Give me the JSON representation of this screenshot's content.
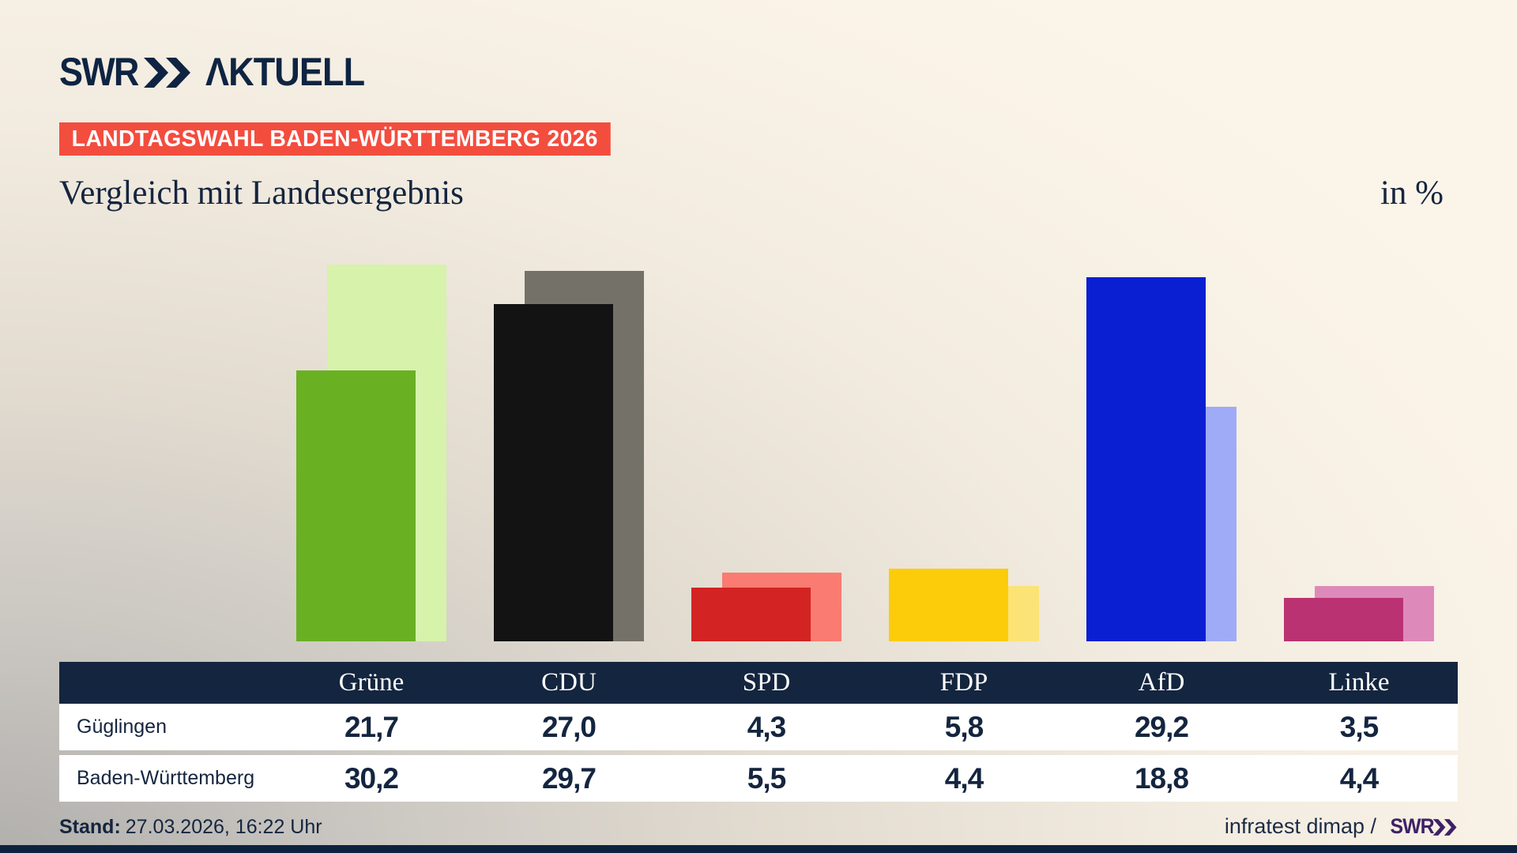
{
  "brand": {
    "swr": "SWR",
    "aktuell": "ΛKTUELL"
  },
  "badge": {
    "text": "LANDTAGSWAHL BADEN-WÜRTTEMBERG 2026",
    "bg": "#f34d3e",
    "fg": "#ffffff"
  },
  "title": "Vergleich mit Landesergebnis",
  "unit": "in %",
  "chart_data": {
    "type": "bar",
    "title": "Vergleich mit Landesergebnis",
    "unit": "in %",
    "categories": [
      "Grüne",
      "CDU",
      "SPD",
      "FDP",
      "AfD",
      "Linke"
    ],
    "series": [
      {
        "name": "Güglingen",
        "role": "foreground",
        "values": [
          21.7,
          27.0,
          4.3,
          5.8,
          29.2,
          3.5
        ],
        "colors": [
          "#6ab023",
          "#131313",
          "#d32322",
          "#fccc0a",
          "#0a1fd2",
          "#bb3272"
        ]
      },
      {
        "name": "Baden-Württemberg",
        "role": "background",
        "values": [
          30.2,
          29.7,
          5.5,
          4.4,
          18.8,
          4.4
        ],
        "colors": [
          "#d6f2ab",
          "#747169",
          "#f97b71",
          "#fbe375",
          "#9fabf7",
          "#dd8abb"
        ]
      }
    ],
    "ylim": [
      0,
      32.4
    ],
    "grid": false,
    "legend_position": "table-below"
  },
  "table": {
    "header": [
      "",
      "Grüne",
      "CDU",
      "SPD",
      "FDP",
      "AfD",
      "Linke"
    ],
    "rows": [
      {
        "label": "Güglingen",
        "values": [
          "21,7",
          "27,0",
          "4,3",
          "5,8",
          "29,2",
          "3,5"
        ]
      },
      {
        "label": "Baden-Württemberg",
        "values": [
          "30,2",
          "29,7",
          "5,5",
          "4,4",
          "18,8",
          "4,4"
        ]
      }
    ]
  },
  "footer": {
    "stand_label": "Stand:",
    "stand_value": "27.03.2026, 16:22 Uhr",
    "source_text": "infratest dimap /",
    "source_logo": "SWR"
  },
  "colors": {
    "text_navy": "#15253f",
    "logo_navy": "#0e2442",
    "table_header_bg": "#14253f",
    "badge_red": "#f34d3e",
    "source_logo_purple": "#3e2166",
    "bottom_bar_navy": "#0d2240",
    "background_cream": "#f9f2e6",
    "background_gray": "#b2b0ad"
  }
}
